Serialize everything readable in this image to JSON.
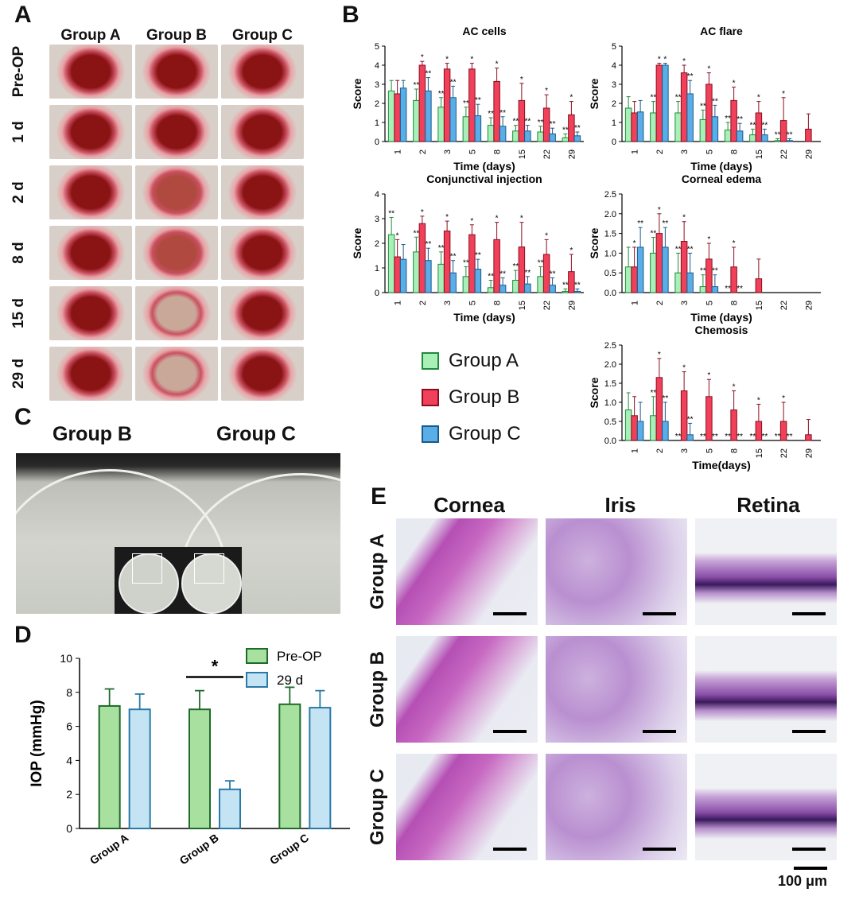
{
  "panel_labels": {
    "A": "A",
    "B": "B",
    "C": "C",
    "D": "D",
    "E": "E"
  },
  "panelA": {
    "groups": [
      "Group A",
      "Group B",
      "Group C"
    ],
    "rows": [
      "Pre-OP",
      "1 d",
      "2 d",
      "8 d",
      "15 d",
      "29 d"
    ]
  },
  "panelB": {
    "legend": [
      {
        "name": "Group A",
        "fill": "#a8f0b8",
        "stroke": "#1e8a3a"
      },
      {
        "name": "Group B",
        "fill": "#f0405a",
        "stroke": "#8a0e22"
      },
      {
        "name": "Group C",
        "fill": "#5aaee8",
        "stroke": "#1a5a8a"
      }
    ]
  },
  "chart_data": [
    {
      "type": "bar",
      "title": "AC cells",
      "xlabel": "Time (days)",
      "ylabel": "Score",
      "categories": [
        "1",
        "2",
        "3",
        "5",
        "8",
        "15",
        "22",
        "29"
      ],
      "ylim": [
        0,
        5
      ],
      "yticks": [
        0,
        1,
        2,
        3,
        4,
        5
      ],
      "series": [
        {
          "name": "Group A",
          "values": [
            2.65,
            2.15,
            1.8,
            1.3,
            0.85,
            0.55,
            0.5,
            0.2
          ],
          "errors": [
            0.55,
            0.6,
            0.5,
            0.5,
            0.4,
            0.3,
            0.3,
            0.2
          ],
          "marks": [
            "",
            "**",
            "**",
            "**",
            "**",
            "**",
            "**",
            "**"
          ]
        },
        {
          "name": "Group B",
          "values": [
            2.5,
            4.0,
            3.8,
            3.8,
            3.15,
            2.15,
            1.75,
            1.4
          ],
          "errors": [
            0.7,
            0.2,
            0.3,
            0.3,
            0.7,
            0.9,
            0.7,
            0.7
          ],
          "marks": [
            "",
            "*",
            "*",
            "*",
            "*",
            "*",
            "*",
            "*"
          ]
        },
        {
          "name": "Group C",
          "values": [
            2.8,
            2.65,
            2.3,
            1.35,
            0.8,
            0.55,
            0.4,
            0.3
          ],
          "errors": [
            0.4,
            0.7,
            0.6,
            0.6,
            0.5,
            0.3,
            0.3,
            0.2
          ],
          "marks": [
            "",
            "**",
            "**",
            "**",
            "**",
            "**",
            "**",
            "**"
          ]
        }
      ]
    },
    {
      "type": "bar",
      "title": "AC flare",
      "xlabel": "Time (days)",
      "ylabel": "Score",
      "categories": [
        "1",
        "2",
        "3",
        "5",
        "8",
        "15",
        "22",
        "29"
      ],
      "ylim": [
        0,
        5
      ],
      "yticks": [
        0,
        1,
        2,
        3,
        4,
        5
      ],
      "series": [
        {
          "name": "Group A",
          "values": [
            1.75,
            1.5,
            1.5,
            1.15,
            0.6,
            0.35,
            0.05,
            0
          ],
          "errors": [
            0.6,
            0.6,
            0.6,
            0.5,
            0.4,
            0.3,
            0.1,
            0
          ],
          "marks": [
            "",
            "**",
            "**",
            "**",
            "**",
            "**",
            "**",
            ""
          ]
        },
        {
          "name": "Group B",
          "values": [
            1.5,
            4.0,
            3.6,
            3.0,
            2.15,
            1.5,
            1.1,
            0.65
          ],
          "errors": [
            0.6,
            0.1,
            0.4,
            0.6,
            0.7,
            0.6,
            1.2,
            0.8
          ],
          "marks": [
            "",
            "*",
            "*",
            "*",
            "*",
            "*",
            "*",
            ""
          ]
        },
        {
          "name": "Group C",
          "values": [
            1.55,
            4.0,
            2.5,
            1.3,
            0.55,
            0.35,
            0.05,
            0
          ],
          "errors": [
            0.6,
            0.1,
            0.7,
            0.6,
            0.4,
            0.3,
            0.1,
            0
          ],
          "marks": [
            "",
            "*",
            "**",
            "**",
            "**",
            "**",
            "**",
            ""
          ]
        }
      ]
    },
    {
      "type": "bar",
      "title": "Conjunctival injection",
      "xlabel": "Time (days)",
      "ylabel": "Score",
      "categories": [
        "1",
        "2",
        "3",
        "5",
        "8",
        "15",
        "22",
        "29"
      ],
      "ylim": [
        0,
        4
      ],
      "yticks": [
        0,
        1,
        2,
        3,
        4
      ],
      "series": [
        {
          "name": "Group A",
          "values": [
            2.35,
            1.65,
            1.15,
            0.65,
            0.2,
            0.5,
            0.65,
            0.05
          ],
          "errors": [
            0.7,
            0.6,
            0.5,
            0.4,
            0.3,
            0.4,
            0.4,
            0.1
          ],
          "marks": [
            "**",
            "**",
            "**",
            "**",
            "**",
            "**",
            "**",
            "**"
          ]
        },
        {
          "name": "Group B",
          "values": [
            1.45,
            2.8,
            2.5,
            2.35,
            2.15,
            1.85,
            1.55,
            0.85
          ],
          "errors": [
            0.7,
            0.3,
            0.4,
            0.4,
            0.7,
            1.0,
            0.6,
            0.7
          ],
          "marks": [
            "*",
            "*",
            "*",
            "*",
            "*",
            "*",
            "*",
            "*"
          ]
        },
        {
          "name": "Group C",
          "values": [
            1.35,
            1.3,
            0.8,
            0.95,
            0.3,
            0.35,
            0.3,
            0.05
          ],
          "errors": [
            0.6,
            0.5,
            0.5,
            0.4,
            0.3,
            0.3,
            0.3,
            0.1
          ],
          "marks": [
            "",
            "**",
            "**",
            "**",
            "**",
            "**",
            "**",
            "**"
          ]
        }
      ]
    },
    {
      "type": "bar",
      "title": "Corneal edema",
      "xlabel": "Time (days)",
      "ylabel": "Score",
      "categories": [
        "1",
        "2",
        "3",
        "5",
        "8",
        "15",
        "22",
        "29"
      ],
      "ylim": [
        0,
        2.5
      ],
      "yticks": [
        0,
        0.5,
        1.0,
        1.5,
        2.0,
        2.5
      ],
      "series": [
        {
          "name": "Group A",
          "values": [
            0.65,
            1.0,
            0.5,
            0.15,
            0,
            0,
            0,
            0
          ],
          "errors": [
            0.5,
            0.4,
            0.5,
            0.3,
            0,
            0,
            0,
            0
          ],
          "marks": [
            "",
            "**",
            "**",
            "**",
            "**",
            "",
            "",
            ""
          ]
        },
        {
          "name": "Group B",
          "values": [
            0.65,
            1.5,
            1.3,
            0.85,
            0.65,
            0.35,
            0,
            0
          ],
          "errors": [
            0.5,
            0.5,
            0.5,
            0.4,
            0.5,
            0.5,
            0,
            0
          ],
          "marks": [
            "*",
            "*",
            "*",
            "*",
            "*",
            "",
            "",
            ""
          ]
        },
        {
          "name": "Group C",
          "values": [
            1.15,
            1.15,
            0.5,
            0.15,
            0,
            0,
            0,
            0
          ],
          "errors": [
            0.5,
            0.5,
            0.5,
            0.3,
            0,
            0,
            0,
            0
          ],
          "marks": [
            "**",
            "**",
            "**",
            "**",
            "**",
            "",
            "",
            ""
          ]
        }
      ]
    },
    {
      "type": "bar",
      "title": "Chemosis",
      "xlabel": "Time(days)",
      "ylabel": "Score",
      "categories": [
        "1",
        "2",
        "3",
        "5",
        "8",
        "15",
        "22",
        "29"
      ],
      "ylim": [
        0,
        2.5
      ],
      "yticks": [
        0,
        0.5,
        1.0,
        1.5,
        2.0,
        2.5
      ],
      "series": [
        {
          "name": "Group A",
          "values": [
            0.8,
            0.65,
            0,
            0,
            0,
            0,
            0,
            0
          ],
          "errors": [
            0.45,
            0.5,
            0,
            0,
            0,
            0,
            0,
            0
          ],
          "marks": [
            "",
            "**",
            "**",
            "**",
            "**",
            "**",
            "**",
            ""
          ]
        },
        {
          "name": "Group B",
          "values": [
            0.65,
            1.65,
            1.3,
            1.15,
            0.8,
            0.5,
            0.5,
            0.15
          ],
          "errors": [
            0.5,
            0.5,
            0.5,
            0.45,
            0.5,
            0.45,
            0.5,
            0.4
          ],
          "marks": [
            "",
            "*",
            "*",
            "*",
            "*",
            "*",
            "*",
            ""
          ]
        },
        {
          "name": "Group C",
          "values": [
            0.5,
            0.5,
            0.15,
            0,
            0,
            0,
            0,
            0
          ],
          "errors": [
            0.5,
            0.5,
            0.3,
            0,
            0,
            0,
            0,
            0
          ],
          "marks": [
            "",
            "**",
            "**",
            "**",
            "**",
            "**",
            "**",
            ""
          ]
        }
      ]
    },
    {
      "type": "bar",
      "title": "",
      "xlabel": "",
      "ylabel": "IOP (mmHg)",
      "categories": [
        "Group A",
        "Group B",
        "Group C"
      ],
      "ylim": [
        0,
        10
      ],
      "yticks": [
        0,
        2,
        4,
        6,
        8,
        10
      ],
      "significance": {
        "between": "Group B",
        "label": "*"
      },
      "series": [
        {
          "name": "Pre-OP",
          "values": [
            7.2,
            7.0,
            7.3
          ],
          "errors": [
            1.0,
            1.1,
            1.0
          ],
          "fill": "#a8e0a0",
          "stroke": "#1e6a2a"
        },
        {
          "name": "29 d",
          "values": [
            7.0,
            2.3,
            7.1
          ],
          "errors": [
            0.9,
            0.5,
            1.0
          ],
          "fill": "#c4e4f4",
          "stroke": "#2a7aa8"
        }
      ]
    }
  ],
  "panelC": {
    "groups": [
      "Group B",
      "Group C"
    ]
  },
  "panelE": {
    "columns": [
      "Cornea",
      "Iris",
      "Retina"
    ],
    "rows": [
      "Group A",
      "Group B",
      "Group C"
    ],
    "scale_label": "100 μm"
  }
}
